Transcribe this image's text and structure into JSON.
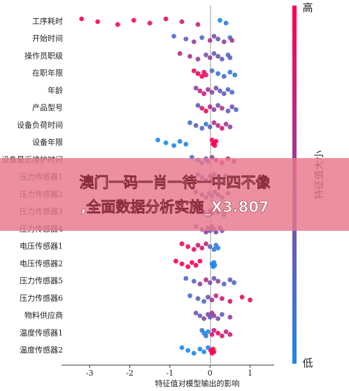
{
  "chart_data": {
    "type": "beeswarm",
    "xlabel": "特征值对模型输出的影响",
    "xlim": [
      -3.7,
      1.6
    ],
    "xticks": [
      -3,
      -2,
      -1,
      0,
      1
    ],
    "colors": {
      "low": "#1e88e5",
      "high": "#ff0052"
    },
    "colorbar": {
      "high": "高",
      "low": "低",
      "label": "特征值大小"
    },
    "annotations": [
      "澳门一码一肖一待一中四不像",
      ",全面数据分析实施_X3.807"
    ],
    "series": [
      {
        "name": "工序耗时",
        "values": [
          -3.2,
          -2.8,
          -2.3,
          -1.9,
          -1.5,
          -1.1,
          -0.7,
          -0.3,
          0.25,
          0.4
        ],
        "levels": [
          1,
          1,
          1,
          1,
          0.9,
          0.9,
          0.8,
          0.7,
          0,
          0.1
        ]
      },
      {
        "name": "开始时间",
        "values": [
          -0.9,
          -0.6,
          -0.4,
          -0.2,
          0,
          0.1,
          0.2,
          0.35,
          0.5,
          0.55
        ],
        "levels": [
          0.2,
          0.3,
          0.5,
          0.2,
          0.6,
          0.4,
          0.3,
          0.5,
          0.2,
          0.6
        ]
      },
      {
        "name": "操作员职级",
        "values": [
          -0.75,
          -0.5,
          -0.3,
          -0.1,
          0,
          0.1,
          0.2,
          0.3,
          0.45,
          0.5
        ],
        "levels": [
          0.7,
          0.6,
          0.5,
          0.4,
          0.5,
          0.3,
          0.4,
          0.3,
          0.2,
          0.3
        ]
      },
      {
        "name": "在职年限",
        "values": [
          -0.4,
          -0.3,
          -0.2,
          -0.15,
          -0.1,
          0.05,
          0.2,
          0.35,
          0.5,
          0.62
        ],
        "levels": [
          0.9,
          1,
          1,
          0.9,
          0.8,
          0.2,
          0.1,
          0.2,
          0.1,
          0.1
        ]
      },
      {
        "name": "年龄",
        "values": [
          -0.35,
          -0.25,
          -0.15,
          -0.05,
          0.05,
          0.15,
          0.25,
          0.35,
          0.45,
          0.55
        ],
        "levels": [
          0.5,
          0.7,
          0.8,
          0.6,
          0.5,
          0.4,
          0.3,
          0.3,
          0.2,
          0.2
        ]
      },
      {
        "name": "产品型号",
        "values": [
          -0.3,
          -0.2,
          -0.1,
          0,
          0.1,
          0.2,
          0.3,
          0.45,
          0.55,
          0.65
        ],
        "levels": [
          0.3,
          0.8,
          0.9,
          0.7,
          0.5,
          0.4,
          0.6,
          0.3,
          0.4,
          0.2
        ]
      },
      {
        "name": "设备负荷时间",
        "values": [
          -0.5,
          -0.35,
          -0.2,
          -0.1,
          0,
          0.1,
          0.2,
          0.3,
          0.4,
          0.5
        ],
        "levels": [
          0.2,
          0.3,
          0.2,
          0.1,
          0.3,
          0.6,
          0.7,
          0.8,
          0.6,
          0.5
        ]
      },
      {
        "name": "设备年限",
        "values": [
          -1.3,
          -1.1,
          -0.9,
          -0.75,
          -0.6,
          0.05,
          0.1,
          0.12,
          0.15,
          0.08
        ],
        "levels": [
          0,
          0,
          0,
          0,
          0,
          1,
          1,
          1,
          1,
          1
        ]
      },
      {
        "name": "设备最近维护时间",
        "values": [
          -0.45,
          -0.3,
          -0.2,
          -0.1,
          -0.05,
          0.05,
          0.15,
          0.3,
          0.45,
          0.6
        ],
        "levels": [
          0.1,
          0.2,
          0.1,
          0.2,
          0.3,
          0.5,
          0.7,
          0.8,
          0.7,
          0.6
        ]
      },
      {
        "name": "压力传感器1",
        "values": [
          -0.3,
          -0.2,
          -0.1,
          0,
          0.05,
          0.1,
          0.2,
          0.3,
          0.4
        ],
        "levels": [
          0.3,
          0.4,
          0.5,
          0.3,
          0.6,
          0.5,
          0.4,
          0.3,
          0.5
        ]
      },
      {
        "name": "压力传感器2",
        "values": [
          -0.35,
          -0.2,
          -0.1,
          -0.02,
          0.05,
          0.12,
          0.2,
          0.3,
          0.45
        ],
        "levels": [
          0.6,
          0.5,
          0.4,
          0.3,
          0.4,
          0.5,
          0.3,
          0.2,
          0.4
        ]
      },
      {
        "name": "压力传感器3",
        "values": [
          -0.3,
          -0.15,
          -0.05,
          0,
          0.05,
          0.1,
          0.2,
          0.35
        ],
        "levels": [
          0.4,
          0.5,
          0.3,
          0.4,
          0.6,
          0.5,
          0.3,
          0.2
        ]
      },
      {
        "name": "压力传感器4",
        "values": [
          -0.35,
          -0.2,
          -0.1,
          -0.05,
          0,
          0.05,
          0.1,
          0.15,
          0.25,
          0.3
        ],
        "levels": [
          0.3,
          0.4,
          0.5,
          0.3,
          0.4,
          0.5,
          0.3,
          0.4,
          0.5,
          0.3
        ]
      },
      {
        "name": "电压传感器1",
        "values": [
          -0.7,
          -0.55,
          -0.4,
          -0.3,
          -0.2,
          -0.1,
          0,
          0.1,
          0.15,
          0.2
        ],
        "levels": [
          1,
          0.9,
          0.9,
          0.8,
          0.8,
          0.7,
          0.3,
          0.1,
          0.1,
          0
        ]
      },
      {
        "name": "电压传感器2",
        "values": [
          -0.85,
          -0.7,
          -0.55,
          -0.45,
          -0.35,
          -0.25,
          0.05,
          0.08,
          0.1,
          0.12
        ],
        "levels": [
          1,
          1,
          1,
          1,
          1,
          1,
          0,
          0,
          0,
          0
        ]
      },
      {
        "name": "压力传感器5",
        "values": [
          -0.6,
          -0.4,
          -0.25,
          -0.1,
          0,
          0.1,
          0.2,
          0.35,
          0.5,
          0.6
        ],
        "levels": [
          0.2,
          0.3,
          0.5,
          0.7,
          0.4,
          0.3,
          0.5,
          0.2,
          0.3,
          0.2
        ]
      },
      {
        "name": "压力传感器6",
        "values": [
          -0.5,
          -0.3,
          -0.15,
          -0.05,
          0.05,
          0.15,
          0.3,
          0.5,
          0.8,
          1.0
        ],
        "levels": [
          0.2,
          0.3,
          0.2,
          0.4,
          0.6,
          0.7,
          0.8,
          0.8,
          0.9,
          0.9
        ]
      },
      {
        "name": "物料供应商",
        "values": [
          -0.35,
          -0.25,
          -0.15,
          -0.05,
          0,
          0.05,
          0.1,
          0.2,
          0.3,
          0.5
        ],
        "levels": [
          0.4,
          0.3,
          0.5,
          0.4,
          0.3,
          0.6,
          0.5,
          0.4,
          0.3,
          0.5
        ]
      },
      {
        "name": "温度传感器1",
        "values": [
          -0.2,
          -0.15,
          -0.1,
          -0.05,
          0.05,
          0.1,
          0.2,
          0.3,
          0.4,
          0.5
        ],
        "levels": [
          0.1,
          0,
          0.1,
          0,
          0.9,
          0.8,
          0.9,
          0.8,
          0.7,
          0.8
        ]
      },
      {
        "name": "温度传感器2",
        "values": [
          -0.7,
          -0.55,
          -0.4,
          -0.25,
          -0.15,
          -0.05,
          0.02,
          0.05,
          0.08,
          0.1
        ],
        "levels": [
          0,
          0,
          0,
          0,
          0,
          0,
          1,
          1,
          1,
          1
        ]
      }
    ]
  }
}
